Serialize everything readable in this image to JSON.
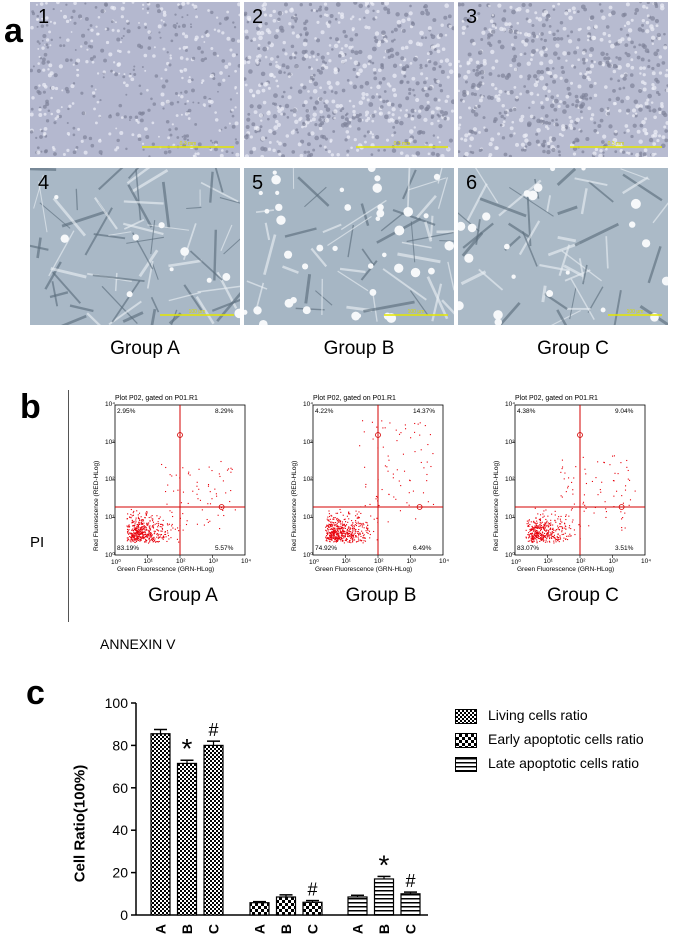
{
  "panel_a": {
    "letter": "a",
    "images": [
      {
        "num": "1",
        "scale": "0.3 mm"
      },
      {
        "num": "2",
        "scale": "0.3 mm"
      },
      {
        "num": "3",
        "scale": "0.3 mm"
      },
      {
        "num": "4",
        "scale": "100 µm"
      },
      {
        "num": "5",
        "scale": "100 µm"
      },
      {
        "num": "6",
        "scale": "100 µm"
      }
    ],
    "groups": [
      "Group A",
      "Group B",
      "Group C"
    ]
  },
  "panel_b": {
    "letter": "b",
    "y_side_label": "PI",
    "x_side_label": "ANNEXIN V",
    "plot_title": "Plot P02, gated on P01.R1",
    "xlabel": "Green Fluorescence (GRN-HLog)",
    "ylabel": "Red Fluorescence (RED-HLog)",
    "plots": [
      {
        "group": "Group A",
        "ul": "2.95%",
        "ur": "8.29%",
        "ll": "83.19%",
        "lr": "5.57%"
      },
      {
        "group": "Group B",
        "ul": "4.22%",
        "ur": "14.37%",
        "ll": "74.92%",
        "lr": "6.49%"
      },
      {
        "group": "Group C",
        "ul": "4.38%",
        "ur": "9.04%",
        "ll": "83.07%",
        "lr": "3.51%"
      }
    ]
  },
  "panel_c": {
    "letter": "c"
  },
  "chart_data": {
    "type": "bar",
    "ylabel": "Cell Ratio(100%)",
    "ylim": [
      0,
      100
    ],
    "yticks": [
      "0",
      "20",
      "40",
      "60",
      "80",
      "100"
    ],
    "categories": [
      "A",
      "B",
      "C"
    ],
    "series": [
      {
        "name": "Living cells ratio",
        "values": [
          85.5,
          71.5,
          80.0
        ],
        "errors": [
          2.0,
          1.5,
          2.0
        ],
        "marks": [
          "",
          "*",
          "#"
        ]
      },
      {
        "name": "Early apoptotic cells ratio",
        "values": [
          5.8,
          8.5,
          6.0
        ],
        "errors": [
          0.5,
          1.0,
          0.8
        ],
        "marks": [
          "",
          "",
          "#"
        ]
      },
      {
        "name": "Late apoptotic cells ratio",
        "values": [
          8.5,
          17.0,
          10.0
        ],
        "errors": [
          0.8,
          1.2,
          0.8
        ],
        "marks": [
          "",
          "*",
          "#"
        ]
      }
    ],
    "legend_position": "top-right"
  }
}
